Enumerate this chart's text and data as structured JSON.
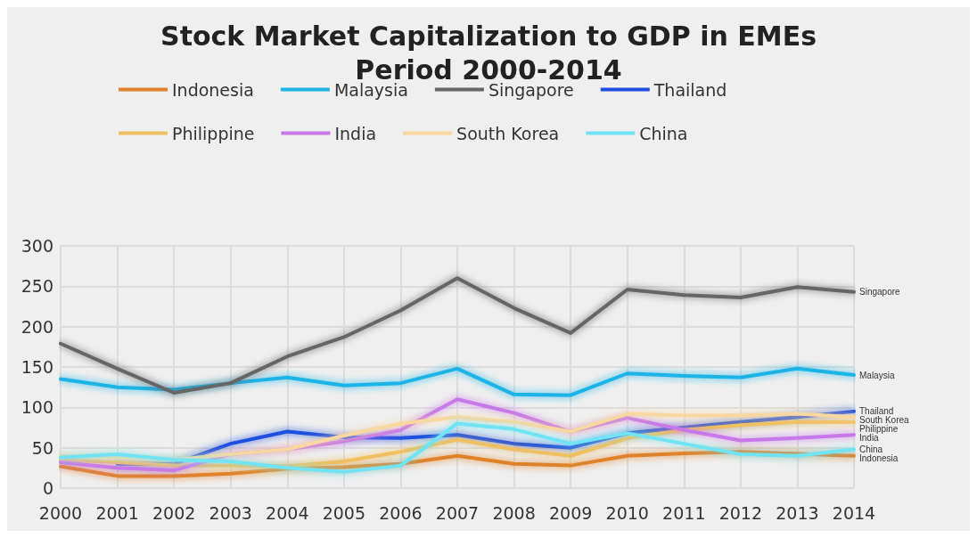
{
  "chart_data": {
    "type": "line",
    "title": "Stock Market Capitalization to GDP in EMEs",
    "subtitle": "Period 2000-2014",
    "categories": [
      "2000",
      "2001",
      "2002",
      "2003",
      "2004",
      "2005",
      "2006",
      "2007",
      "2008",
      "2009",
      "2010",
      "2011",
      "2012",
      "2013",
      "2014"
    ],
    "series": [
      {
        "name": "Indonesia",
        "color": "#e0822b",
        "values": [
          27,
          15,
          15,
          18,
          24,
          26,
          30,
          40,
          30,
          28,
          40,
          43,
          45,
          null,
          40
        ]
      },
      {
        "name": "Malaysia",
        "color": "#1eb4e6",
        "values": [
          135,
          125,
          122,
          130,
          137,
          127,
          130,
          148,
          116,
          115,
          142,
          139,
          137,
          148,
          140
        ]
      },
      {
        "name": "Singapore",
        "color": "#666666",
        "values": [
          179,
          148,
          118,
          130,
          163,
          187,
          220,
          260,
          223,
          192,
          246,
          239,
          236,
          249,
          243
        ]
      },
      {
        "name": "Thailand",
        "color": "#1f4fe0",
        "values": [
          null,
          30,
          30,
          55,
          70,
          63,
          62,
          66,
          55,
          50,
          68,
          75,
          82,
          88,
          95
        ]
      },
      {
        "name": "Philippine",
        "color": "#f0c060",
        "values": [
          35,
          32,
          28,
          28,
          27,
          33,
          45,
          60,
          48,
          40,
          62,
          72,
          78,
          82,
          82
        ]
      },
      {
        "name": "India",
        "color": "#c878e8",
        "values": [
          32,
          25,
          22,
          42,
          48,
          58,
          72,
          110,
          93,
          70,
          87,
          72,
          59,
          62,
          66
        ]
      },
      {
        "name": "South Korea",
        "color": "#f8d8a0",
        "values": [
          40,
          38,
          35,
          42,
          48,
          65,
          80,
          88,
          82,
          70,
          92,
          90,
          90,
          92,
          88
        ]
      },
      {
        "name": "China",
        "color": "#70e4f4",
        "values": [
          38,
          42,
          35,
          33,
          25,
          20,
          28,
          80,
          73,
          55,
          68,
          55,
          42,
          40,
          48
        ]
      }
    ],
    "ylim": [
      0,
      300
    ],
    "yticks": [
      0,
      50,
      100,
      150,
      200,
      250,
      300
    ],
    "grid": true,
    "legend": "top",
    "marker": "none",
    "line_style": "solid"
  }
}
